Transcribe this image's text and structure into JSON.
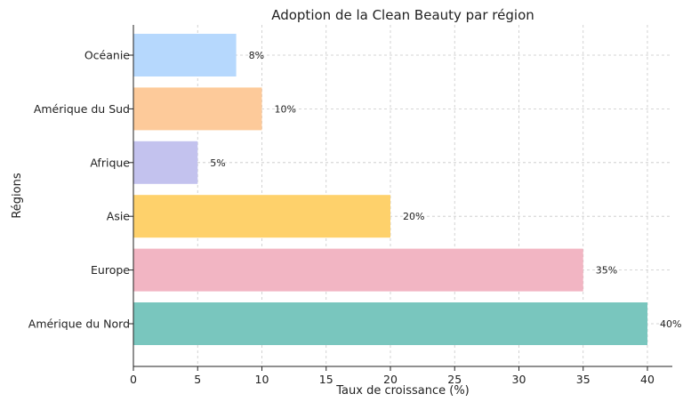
{
  "chart_data": {
    "type": "bar",
    "orientation": "horizontal",
    "title": "Adoption de la Clean Beauty par région",
    "xlabel": "Taux de croissance (%)",
    "ylabel": "Régions",
    "categories": [
      "Amérique du Nord",
      "Europe",
      "Asie",
      "Afrique",
      "Amérique du Sud",
      "Océanie"
    ],
    "values": [
      40,
      35,
      20,
      5,
      10,
      8
    ],
    "data_labels": [
      "40%",
      "35%",
      "20%",
      "5%",
      "10%",
      "8%"
    ],
    "colors": [
      "#79c6be",
      "#f2b5c3",
      "#fed16b",
      "#c3c2ee",
      "#fdca9a",
      "#b6d8fd"
    ],
    "xlim": [
      0,
      42
    ],
    "xticks": [
      0,
      5,
      10,
      15,
      20,
      25,
      30,
      35,
      40
    ],
    "grid": true
  }
}
